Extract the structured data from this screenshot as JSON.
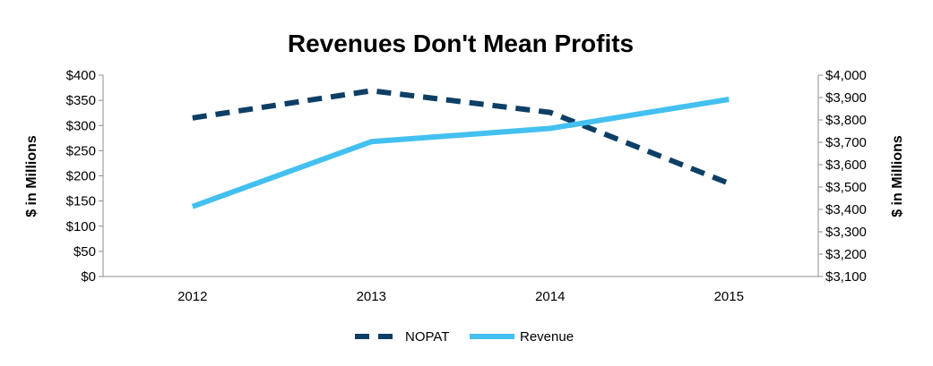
{
  "chart_data": {
    "type": "line",
    "title": "Revenues Don't Mean Profits",
    "categories": [
      "2012",
      "2013",
      "2014",
      "2015"
    ],
    "y_left": {
      "label": "$ in Millions",
      "min": 0,
      "max": 400,
      "step": 50,
      "tick_labels": [
        "$0",
        "$50",
        "$100",
        "$150",
        "$200",
        "$250",
        "$300",
        "$350",
        "$400"
      ]
    },
    "y_right": {
      "label": "$ in Millions",
      "min": 3100,
      "max": 4000,
      "step": 100,
      "tick_labels": [
        "$3,100",
        "$3,200",
        "$3,300",
        "$3,400",
        "$3,500",
        "$3,600",
        "$3,700",
        "$3,800",
        "$3,900",
        "$4,000"
      ]
    },
    "series": [
      {
        "name": "NOPAT",
        "axis": "left",
        "style": "dashed",
        "color": "#0d3f66",
        "values": [
          315,
          369,
          326,
          185
        ]
      },
      {
        "name": "Revenue",
        "axis": "right",
        "style": "solid",
        "color": "#43c0f0",
        "values": [
          3413,
          3703,
          3762,
          3892
        ]
      }
    ],
    "legend_position": "bottom",
    "grid": false
  }
}
